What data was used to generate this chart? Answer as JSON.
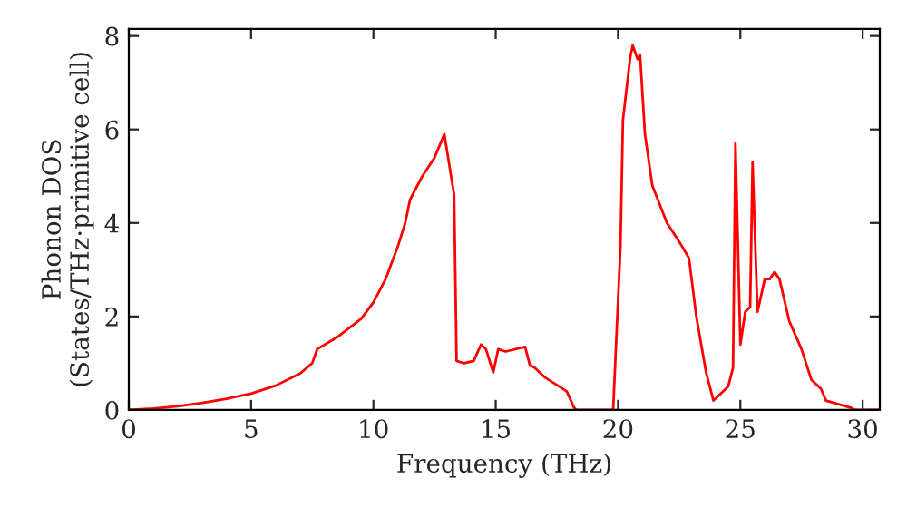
{
  "chart_data": {
    "type": "line",
    "xlabel": "Frequency (THz)",
    "ylabel": "Phonon DOS\n(States/THz·primitive cell)",
    "xlim": [
      0,
      30.7
    ],
    "ylim": [
      0,
      8.15
    ],
    "xticks": [
      0,
      5,
      10,
      15,
      20,
      25,
      30
    ],
    "yticks": [
      0,
      2,
      4,
      6,
      8
    ],
    "grid": false,
    "series": [
      {
        "color": "#ff0000",
        "x": [
          0,
          1,
          2,
          3,
          4,
          5,
          6,
          7,
          7.5,
          7.7,
          8.5,
          9.5,
          10,
          10.5,
          11,
          11.3,
          11.5,
          12,
          12.5,
          12.9,
          13.3,
          13.4,
          13.7,
          14.1,
          14.4,
          14.6,
          14.9,
          15.1,
          15.4,
          16.2,
          16.4,
          16.6,
          17.0,
          17.6,
          17.9,
          18.2,
          18.3,
          19.8,
          20.1,
          20.2,
          20.5,
          20.6,
          20.8,
          20.9,
          21.1,
          21.4,
          22,
          22.5,
          22.9,
          23.2,
          23.6,
          23.9,
          24.5,
          24.7,
          24.8,
          25.0,
          25.2,
          25.4,
          25.5,
          25.7,
          26.0,
          26.2,
          26.4,
          26.6,
          27.0,
          27.5,
          27.9,
          28.3,
          28.5,
          29.5,
          29.7,
          30.7
        ],
        "values": [
          0,
          0.03,
          0.08,
          0.15,
          0.24,
          0.35,
          0.52,
          0.78,
          1.0,
          1.3,
          1.55,
          1.95,
          2.3,
          2.8,
          3.5,
          4.0,
          4.5,
          5.0,
          5.4,
          5.9,
          4.6,
          1.05,
          1.0,
          1.05,
          1.4,
          1.3,
          0.8,
          1.3,
          1.25,
          1.35,
          0.95,
          0.9,
          0.7,
          0.5,
          0.4,
          0.05,
          0,
          0,
          3.5,
          6.2,
          7.55,
          7.8,
          7.5,
          7.6,
          5.9,
          4.8,
          4.0,
          3.6,
          3.25,
          2.0,
          0.8,
          0.2,
          0.5,
          0.9,
          5.7,
          1.4,
          2.1,
          2.2,
          5.3,
          2.1,
          2.8,
          2.8,
          2.95,
          2.8,
          1.9,
          1.3,
          0.65,
          0.45,
          0.2,
          0.05,
          0,
          0
        ]
      }
    ]
  }
}
